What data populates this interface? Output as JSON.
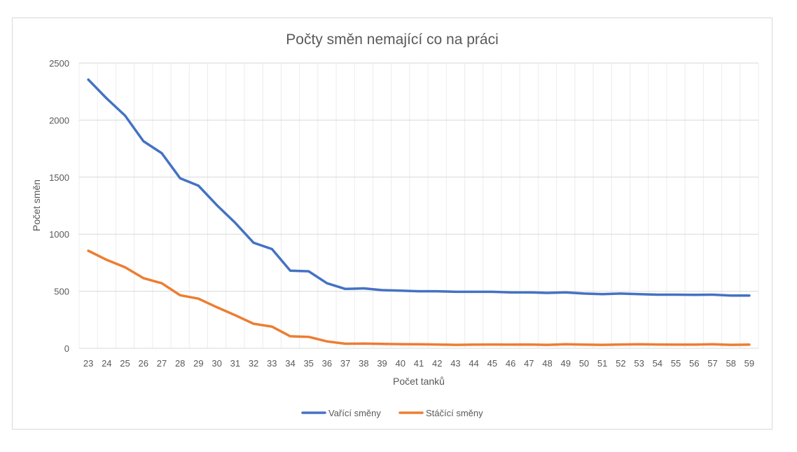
{
  "chart_data": {
    "type": "line",
    "title": "Počty směn nemající co na práci",
    "xlabel": "Počet tanků",
    "ylabel": "Počet směn",
    "ylim": [
      0,
      2500
    ],
    "y_ticks": [
      "0",
      "500",
      "1000",
      "1500",
      "2000",
      "2500"
    ],
    "grid": true,
    "legend_position": "bottom",
    "x": [
      "23",
      "24",
      "25",
      "26",
      "27",
      "28",
      "29",
      "30",
      "31",
      "32",
      "33",
      "34",
      "35",
      "36",
      "37",
      "38",
      "39",
      "40",
      "41",
      "42",
      "43",
      "44",
      "45",
      "46",
      "47",
      "48",
      "49",
      "50",
      "51",
      "52",
      "53",
      "54",
      "55",
      "56",
      "57",
      "58",
      "59"
    ],
    "series": [
      {
        "name": "Vařící směny",
        "color": "#4472c4",
        "values": [
          2355,
          2190,
          2040,
          1815,
          1710,
          1490,
          1425,
          1255,
          1100,
          925,
          870,
          680,
          675,
          570,
          520,
          525,
          510,
          505,
          500,
          500,
          495,
          495,
          495,
          490,
          490,
          485,
          490,
          480,
          475,
          480,
          475,
          470,
          470,
          468,
          470,
          462,
          462
        ]
      },
      {
        "name": "Stáčící směny",
        "color": "#ed7d31",
        "values": [
          855,
          775,
          710,
          615,
          570,
          465,
          435,
          360,
          290,
          215,
          190,
          105,
          100,
          60,
          40,
          42,
          38,
          36,
          35,
          33,
          30,
          32,
          33,
          32,
          33,
          30,
          35,
          32,
          30,
          33,
          35,
          33,
          32,
          32,
          35,
          30,
          32
        ]
      }
    ]
  }
}
